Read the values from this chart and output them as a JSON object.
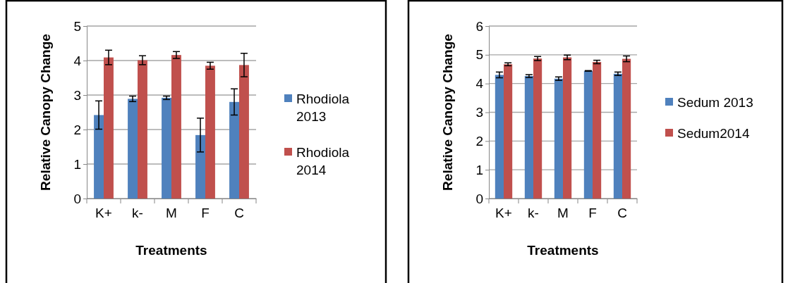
{
  "chart_data": [
    {
      "type": "bar",
      "xlabel": "Treatments",
      "ylabel": "Relative Canopy  Change",
      "categories": [
        "K+",
        "k-",
        "M",
        "F",
        "C"
      ],
      "ylim": [
        0,
        5
      ],
      "yticks": [
        0,
        1,
        2,
        3,
        4,
        5
      ],
      "grid": "y",
      "legend": "right",
      "series": [
        {
          "name": "Rhodiola 2013",
          "color": "#4f81bd",
          "values": [
            2.42,
            2.89,
            2.92,
            1.84,
            2.8
          ],
          "errors": [
            0.41,
            0.08,
            0.05,
            0.49,
            0.38
          ]
        },
        {
          "name": "Rhodiola 2014",
          "color": "#c0504d",
          "values": [
            4.09,
            4.01,
            4.16,
            3.85,
            3.87
          ],
          "errors": [
            0.21,
            0.13,
            0.1,
            0.1,
            0.34
          ]
        }
      ]
    },
    {
      "type": "bar",
      "xlabel": "Treatments",
      "ylabel": "Relative Canopy Change",
      "categories": [
        "K+",
        "k-",
        "M",
        "F",
        "C"
      ],
      "ylim": [
        0,
        6
      ],
      "yticks": [
        0,
        1,
        2,
        3,
        4,
        5,
        6
      ],
      "grid": "y",
      "legend": "right",
      "series": [
        {
          "name": "Sedum 2013",
          "color": "#4f81bd",
          "values": [
            4.3,
            4.26,
            4.17,
            4.44,
            4.34
          ],
          "errors": [
            0.1,
            0.05,
            0.06,
            0.01,
            0.06
          ]
        },
        {
          "name": "Sedum2014",
          "color": "#c0504d",
          "values": [
            4.67,
            4.87,
            4.91,
            4.75,
            4.86
          ],
          "errors": [
            0.05,
            0.07,
            0.08,
            0.06,
            0.1
          ]
        }
      ]
    }
  ]
}
